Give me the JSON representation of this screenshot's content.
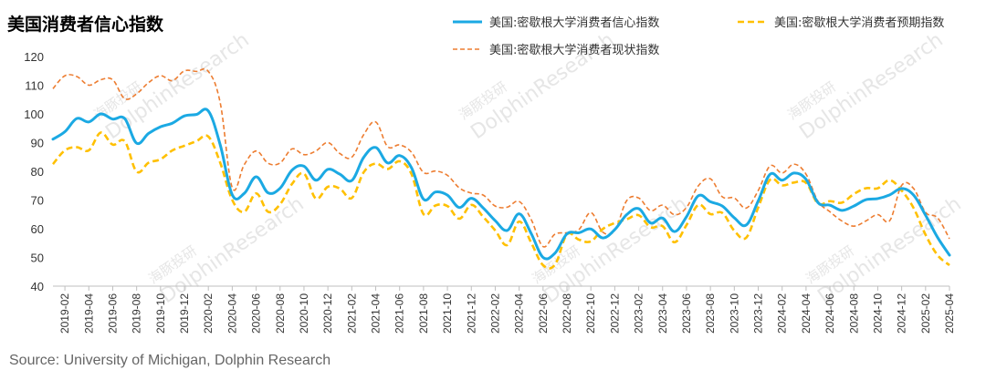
{
  "title": "美国消费者信心指数",
  "source": "Source: University of Michigan, Dolphin Research",
  "watermark": {
    "cn": "海豚投研",
    "en": "DolphinResearch"
  },
  "chart_data": {
    "type": "line",
    "ylim": [
      40,
      120
    ],
    "yticks": [
      40,
      50,
      60,
      70,
      80,
      90,
      100,
      110,
      120
    ],
    "xtick_labels": [
      "2019-02",
      "2019-04",
      "2019-06",
      "2019-08",
      "2019-10",
      "2019-12",
      "2020-02",
      "2020-04",
      "2020-06",
      "2020-08",
      "2020-10",
      "2020-12",
      "2021-02",
      "2021-04",
      "2021-06",
      "2021-08",
      "2021-10",
      "2021-12",
      "2022-02",
      "2022-04",
      "2022-06",
      "2022-08",
      "2022-10",
      "2022-12",
      "2023-02",
      "2023-04",
      "2023-06",
      "2023-08",
      "2023-10",
      "2023-12",
      "2024-02",
      "2024-04",
      "2024-06",
      "2024-08",
      "2024-10",
      "2024-12",
      "2025-02",
      "2025-04"
    ],
    "x_start": "2019-01",
    "x_end": "2025-04",
    "grid": false,
    "legend_position": "top-right",
    "series": [
      {
        "name": "美国:密歇根大学消费者信心指数",
        "color": "#1BA9E3",
        "style": "solid",
        "values": [
          91.2,
          93.8,
          98.4,
          97.2,
          100.0,
          98.2,
          98.4,
          89.8,
          93.2,
          95.5,
          96.8,
          99.3,
          99.8,
          101.0,
          89.1,
          71.8,
          72.3,
          78.1,
          72.5,
          74.1,
          80.4,
          81.8,
          76.9,
          80.7,
          79.0,
          76.8,
          84.9,
          88.3,
          82.9,
          85.5,
          81.2,
          70.3,
          72.8,
          71.7,
          67.4,
          70.6,
          67.2,
          62.8,
          59.4,
          65.2,
          58.4,
          50.0,
          51.5,
          58.2,
          58.6,
          59.9,
          56.8,
          59.7,
          64.9,
          67.0,
          62.0,
          63.7,
          59.0,
          64.2,
          71.5,
          69.4,
          67.9,
          63.8,
          61.3,
          69.7,
          79.0,
          76.9,
          79.4,
          77.2,
          69.1,
          68.2,
          66.4,
          67.9,
          70.1,
          70.5,
          71.8,
          74.0,
          71.7,
          64.7,
          57.0,
          50.8
        ]
      },
      {
        "name": "美国:密歇根大学消费者预期指数",
        "color": "#FFC000",
        "style": "dashed",
        "values": [
          82.5,
          87.3,
          88.4,
          87.3,
          93.5,
          89.3,
          90.5,
          79.9,
          83.0,
          84.2,
          87.3,
          88.9,
          90.5,
          92.1,
          82.9,
          70.0,
          65.9,
          72.3,
          65.9,
          68.5,
          75.6,
          79.2,
          70.5,
          74.6,
          74.0,
          70.7,
          79.7,
          82.7,
          80.8,
          83.5,
          79.0,
          65.1,
          68.1,
          67.9,
          63.5,
          68.3,
          64.1,
          59.4,
          54.3,
          62.5,
          55.2,
          47.3,
          47.5,
          58.0,
          56.2,
          55.6,
          59.9,
          62.0,
          63.3,
          64.7,
          60.5,
          60.9,
          55.3,
          61.3,
          68.3,
          65.1,
          65.5,
          59.3,
          56.9,
          67.4,
          77.1,
          75.1,
          76.1,
          76.0,
          68.8,
          69.6,
          69.1,
          72.1,
          74.1,
          74.1,
          76.9,
          73.3,
          67.2,
          57.9,
          50.8,
          47.3
        ]
      },
      {
        "name": "美国:密歇根大学消费者现状指数",
        "color": "#ED7D31",
        "style": "dashed-thin",
        "values": [
          108.8,
          113.3,
          113.0,
          110.0,
          111.9,
          111.9,
          105.3,
          107.0,
          110.9,
          113.3,
          111.6,
          115.0,
          114.8,
          114.8,
          103.7,
          74.3,
          82.3,
          87.1,
          82.8,
          82.9,
          87.8,
          85.8,
          87.1,
          90.0,
          86.2,
          84.9,
          92.8,
          97.2,
          88.6,
          89.2,
          86.6,
          79.6,
          80.1,
          78.6,
          74.2,
          72.4,
          71.7,
          67.9,
          67.5,
          69.5,
          63.3,
          53.8,
          58.1,
          58.6,
          59.7,
          65.6,
          58.8,
          59.4,
          69.8,
          70.7,
          66.3,
          68.2,
          64.9,
          67.4,
          75.0,
          77.4,
          71.1,
          70.7,
          67.2,
          73.3,
          81.9,
          79.4,
          82.5,
          79.0,
          69.6,
          65.9,
          62.7,
          60.9,
          62.7,
          64.9,
          62.8,
          75.1,
          74.0,
          65.7,
          63.8,
          56.5
        ]
      }
    ]
  }
}
